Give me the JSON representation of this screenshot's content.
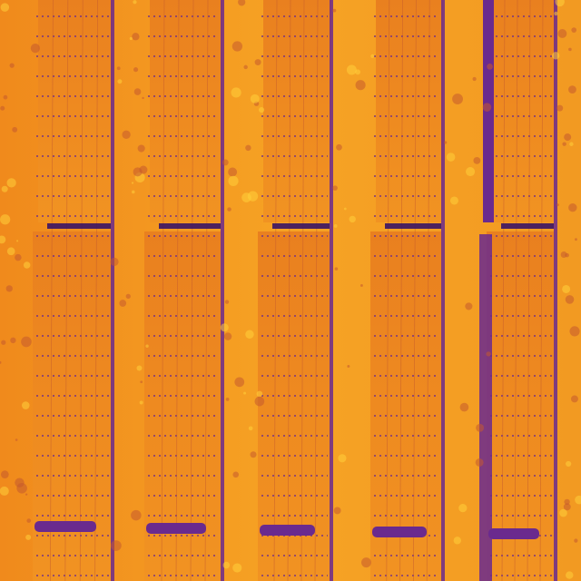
{
  "image": {
    "subject": "thermal-aerial-solar-panel-rows",
    "palette": {
      "hot": "#ffcf3a",
      "warm": "#f5a21e",
      "mid": "#e8861a",
      "cool": "#c45a2e",
      "cold": "#6a2a8e",
      "coldest": "#3a1466"
    }
  }
}
